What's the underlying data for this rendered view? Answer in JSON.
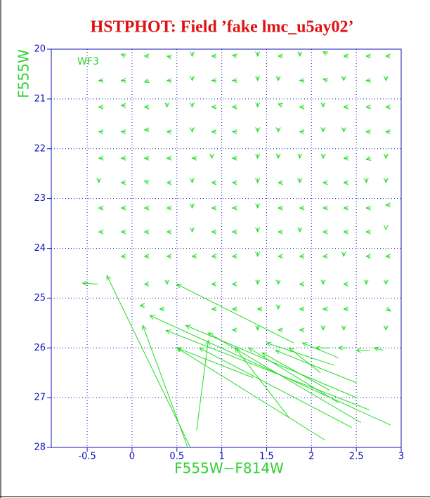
{
  "chart_data": {
    "type": "arrows",
    "title": "HSTPHOT: Field ’fake lmc_u5ay02’",
    "x_label": "F555W−F814W",
    "y_label": "F555W",
    "annotation": "WF3",
    "color": "#22dd22",
    "grid": true,
    "y_inverted": true,
    "xlim": [
      -0.9,
      3.0
    ],
    "ylim": [
      20,
      28
    ],
    "xticks": [
      -0.5,
      0,
      0.5,
      1,
      1.5,
      2,
      2.5,
      3
    ],
    "yticks": [
      20,
      21,
      22,
      23,
      24,
      25,
      26,
      27,
      28
    ],
    "arrows": [
      [
        -0.07,
        20.14,
        -0.12,
        20.1
      ],
      [
        0.19,
        20.14,
        0.14,
        20.14
      ],
      [
        0.44,
        20.16,
        0.39,
        20.14
      ],
      [
        0.67,
        20.06,
        0.67,
        20.14
      ],
      [
        0.94,
        20.14,
        0.89,
        20.14
      ],
      [
        1.17,
        20.14,
        1.12,
        20.12
      ],
      [
        1.4,
        20.06,
        1.4,
        20.14
      ],
      [
        1.68,
        20.14,
        1.63,
        20.14
      ],
      [
        1.87,
        20.06,
        1.87,
        20.14
      ],
      [
        2.18,
        20.1,
        2.13,
        20.05
      ],
      [
        2.41,
        20.14,
        2.36,
        20.14
      ],
      [
        2.66,
        20.14,
        2.61,
        20.14
      ],
      [
        2.88,
        20.14,
        2.83,
        20.14
      ],
      [
        -0.32,
        20.63,
        -0.37,
        20.63
      ],
      [
        -0.07,
        20.63,
        -0.12,
        20.63
      ],
      [
        0.19,
        20.63,
        0.14,
        20.66
      ],
      [
        0.44,
        20.63,
        0.39,
        20.63
      ],
      [
        0.67,
        20.55,
        0.67,
        20.63
      ],
      [
        0.94,
        20.63,
        0.89,
        20.63
      ],
      [
        1.17,
        20.63,
        1.12,
        20.63
      ],
      [
        1.4,
        20.55,
        1.4,
        20.63
      ],
      [
        1.63,
        20.55,
        1.63,
        20.63
      ],
      [
        1.92,
        20.63,
        1.87,
        20.63
      ],
      [
        2.18,
        20.63,
        2.13,
        20.6
      ],
      [
        2.36,
        20.55,
        2.36,
        20.63
      ],
      [
        2.66,
        20.63,
        2.61,
        20.63
      ],
      [
        2.83,
        20.55,
        2.83,
        20.63
      ],
      [
        -0.32,
        21.16,
        -0.37,
        21.16
      ],
      [
        -0.07,
        21.13,
        -0.12,
        21.13
      ],
      [
        0.19,
        21.16,
        0.14,
        21.16
      ],
      [
        0.39,
        21.08,
        0.39,
        21.16
      ],
      [
        0.67,
        21.08,
        0.67,
        21.16
      ],
      [
        0.94,
        21.16,
        0.89,
        21.16
      ],
      [
        1.17,
        21.16,
        1.12,
        21.16
      ],
      [
        1.4,
        21.08,
        1.4,
        21.16
      ],
      [
        1.68,
        21.13,
        1.63,
        21.1
      ],
      [
        1.92,
        21.16,
        1.87,
        21.16
      ],
      [
        2.13,
        21.08,
        2.13,
        21.16
      ],
      [
        2.41,
        21.16,
        2.36,
        21.16
      ],
      [
        2.66,
        21.16,
        2.61,
        21.16
      ],
      [
        2.88,
        21.16,
        2.83,
        21.16
      ],
      [
        -0.32,
        21.66,
        -0.37,
        21.66
      ],
      [
        -0.07,
        21.66,
        -0.12,
        21.66
      ],
      [
        0.19,
        21.62,
        0.14,
        21.62
      ],
      [
        0.44,
        21.66,
        0.39,
        21.66
      ],
      [
        0.67,
        21.58,
        0.67,
        21.66
      ],
      [
        0.94,
        21.66,
        0.89,
        21.66
      ],
      [
        1.17,
        21.66,
        1.12,
        21.66
      ],
      [
        1.4,
        21.58,
        1.4,
        21.66
      ],
      [
        1.63,
        21.58,
        1.63,
        21.66
      ],
      [
        1.92,
        21.66,
        1.87,
        21.66
      ],
      [
        2.13,
        21.58,
        2.13,
        21.66
      ],
      [
        2.36,
        21.58,
        2.36,
        21.66
      ],
      [
        2.66,
        21.66,
        2.61,
        21.66
      ],
      [
        2.88,
        21.66,
        2.83,
        21.66
      ],
      [
        -0.32,
        22.19,
        -0.37,
        22.19
      ],
      [
        -0.07,
        22.19,
        -0.12,
        22.19
      ],
      [
        0.19,
        22.19,
        0.14,
        22.19
      ],
      [
        0.44,
        22.19,
        0.39,
        22.19
      ],
      [
        0.72,
        22.19,
        0.67,
        22.19
      ],
      [
        0.89,
        22.11,
        0.89,
        22.19
      ],
      [
        1.17,
        22.19,
        1.12,
        22.19
      ],
      [
        1.4,
        22.11,
        1.4,
        22.19
      ],
      [
        1.63,
        22.11,
        1.63,
        22.19
      ],
      [
        1.87,
        22.11,
        1.87,
        22.19
      ],
      [
        2.13,
        22.11,
        2.13,
        22.19
      ],
      [
        2.41,
        22.19,
        2.36,
        22.19
      ],
      [
        2.66,
        22.19,
        2.61,
        22.22
      ],
      [
        2.83,
        22.11,
        2.83,
        22.19
      ],
      [
        -0.37,
        22.6,
        -0.37,
        22.68
      ],
      [
        -0.07,
        22.68,
        -0.12,
        22.68
      ],
      [
        0.19,
        22.68,
        0.14,
        22.65
      ],
      [
        0.44,
        22.68,
        0.39,
        22.68
      ],
      [
        0.67,
        22.6,
        0.67,
        22.68
      ],
      [
        0.94,
        22.68,
        0.89,
        22.68
      ],
      [
        1.17,
        22.68,
        1.12,
        22.68
      ],
      [
        1.4,
        22.6,
        1.4,
        22.68
      ],
      [
        1.68,
        22.68,
        1.63,
        22.68
      ],
      [
        1.87,
        22.6,
        1.87,
        22.68
      ],
      [
        2.18,
        22.68,
        2.13,
        22.68
      ],
      [
        2.41,
        22.68,
        2.36,
        22.68
      ],
      [
        2.61,
        22.6,
        2.61,
        22.68
      ],
      [
        2.83,
        22.6,
        2.83,
        22.68
      ],
      [
        -0.32,
        23.19,
        -0.37,
        23.19
      ],
      [
        -0.07,
        23.19,
        -0.12,
        23.19
      ],
      [
        0.19,
        23.19,
        0.14,
        23.19
      ],
      [
        0.44,
        23.19,
        0.39,
        23.19
      ],
      [
        0.67,
        23.11,
        0.67,
        23.19
      ],
      [
        0.94,
        23.19,
        0.89,
        23.19
      ],
      [
        1.17,
        23.19,
        1.12,
        23.19
      ],
      [
        1.4,
        23.11,
        1.4,
        23.19
      ],
      [
        1.68,
        23.19,
        1.63,
        23.19
      ],
      [
        1.92,
        23.19,
        1.87,
        23.19
      ],
      [
        2.18,
        23.19,
        2.13,
        23.19
      ],
      [
        2.41,
        23.19,
        2.36,
        23.19
      ],
      [
        2.66,
        23.19,
        2.61,
        23.19
      ],
      [
        2.88,
        23.13,
        2.83,
        23.13
      ],
      [
        -0.32,
        23.67,
        -0.37,
        23.67
      ],
      [
        -0.07,
        23.67,
        -0.12,
        23.67
      ],
      [
        0.19,
        23.67,
        0.14,
        23.67
      ],
      [
        0.44,
        23.67,
        0.39,
        23.67
      ],
      [
        0.67,
        23.59,
        0.67,
        23.67
      ],
      [
        0.94,
        23.67,
        0.89,
        23.67
      ],
      [
        1.17,
        23.67,
        1.12,
        23.67
      ],
      [
        1.4,
        23.59,
        1.4,
        23.67
      ],
      [
        1.68,
        23.67,
        1.63,
        23.67
      ],
      [
        1.87,
        23.59,
        1.87,
        23.67
      ],
      [
        2.18,
        23.67,
        2.13,
        23.67
      ],
      [
        2.41,
        23.67,
        2.36,
        23.67
      ],
      [
        2.66,
        23.67,
        2.61,
        23.67
      ],
      [
        2.83,
        23.59,
        2.83,
        23.62
      ],
      [
        -0.07,
        24.16,
        -0.12,
        24.16
      ],
      [
        0.19,
        24.16,
        0.14,
        24.16
      ],
      [
        0.44,
        24.16,
        0.39,
        24.16
      ],
      [
        0.72,
        24.16,
        0.67,
        24.16
      ],
      [
        0.94,
        24.16,
        0.89,
        24.16
      ],
      [
        1.17,
        24.16,
        1.12,
        24.16
      ],
      [
        1.4,
        24.08,
        1.4,
        24.16
      ],
      [
        1.68,
        24.16,
        1.63,
        24.16
      ],
      [
        1.92,
        24.16,
        1.87,
        24.16
      ],
      [
        2.18,
        24.16,
        2.13,
        24.16
      ],
      [
        2.36,
        24.08,
        2.36,
        24.16
      ],
      [
        2.66,
        24.16,
        2.61,
        24.16
      ],
      [
        2.88,
        24.16,
        2.83,
        24.16
      ],
      [
        0.19,
        24.72,
        0.14,
        24.72
      ],
      [
        0.39,
        24.64,
        0.39,
        24.72
      ],
      [
        0.94,
        24.72,
        0.89,
        24.72
      ],
      [
        1.17,
        24.72,
        1.12,
        24.72
      ],
      [
        1.4,
        24.64,
        1.4,
        24.72
      ],
      [
        1.63,
        24.64,
        1.63,
        24.72
      ],
      [
        1.92,
        24.72,
        1.87,
        24.72
      ],
      [
        2.13,
        24.64,
        2.13,
        24.72
      ],
      [
        2.41,
        24.72,
        2.36,
        24.72
      ],
      [
        2.61,
        24.64,
        2.61,
        24.72
      ],
      [
        2.83,
        24.64,
        2.83,
        24.72
      ],
      [
        0.14,
        25.15,
        0.09,
        25.15
      ],
      [
        0.36,
        25.22,
        0.31,
        25.22
      ],
      [
        0.94,
        25.22,
        0.89,
        25.22
      ],
      [
        1.17,
        25.22,
        1.12,
        25.22
      ],
      [
        1.45,
        25.22,
        1.4,
        25.22
      ],
      [
        1.63,
        25.14,
        1.63,
        25.22
      ],
      [
        1.92,
        25.22,
        1.87,
        25.22
      ],
      [
        2.18,
        25.22,
        2.13,
        25.22
      ],
      [
        2.41,
        25.22,
        2.36,
        25.22
      ],
      [
        2.83,
        25.2,
        2.88,
        25.26
      ],
      [
        1.17,
        25.64,
        1.12,
        25.64
      ],
      [
        1.4,
        25.56,
        1.4,
        25.64
      ],
      [
        1.68,
        25.64,
        1.63,
        25.64
      ],
      [
        1.92,
        25.64,
        1.87,
        25.64
      ],
      [
        2.13,
        25.56,
        2.13,
        25.64
      ],
      [
        2.36,
        25.56,
        2.36,
        25.64
      ],
      [
        2.83,
        25.56,
        2.83,
        25.64
      ],
      [
        -0.38,
        24.72,
        -0.55,
        24.7
      ],
      [
        0.65,
        28.0,
        -0.28,
        24.55
      ],
      [
        0.62,
        28.0,
        0.12,
        25.55
      ],
      [
        1.8,
        25.9,
        0.5,
        24.72
      ],
      [
        2.88,
        27.55,
        0.2,
        25.35
      ],
      [
        2.65,
        27.25,
        0.38,
        25.65
      ],
      [
        2.5,
        27.0,
        0.6,
        25.55
      ],
      [
        2.55,
        27.5,
        0.85,
        25.7
      ],
      [
        2.15,
        27.85,
        0.5,
        26.0
      ],
      [
        1.35,
        26.6,
        0.5,
        26.0
      ],
      [
        2.45,
        27.6,
        0.75,
        26.0
      ],
      [
        0.72,
        27.65,
        0.85,
        25.85
      ],
      [
        1.75,
        27.4,
        1.15,
        26.0
      ],
      [
        2.3,
        27.1,
        1.3,
        26.0
      ],
      [
        2.2,
        26.85,
        1.45,
        26.1
      ],
      [
        2.5,
        26.7,
        1.6,
        26.05
      ],
      [
        2.1,
        26.5,
        1.75,
        26.0
      ],
      [
        2.3,
        26.2,
        1.9,
        25.9
      ],
      [
        2.25,
        26.35,
        1.5,
        25.9
      ],
      [
        2.2,
        26.0,
        2.05,
        26.0
      ],
      [
        2.4,
        26.0,
        2.3,
        26.0
      ],
      [
        2.65,
        26.05,
        2.5,
        26.05
      ],
      [
        2.8,
        26.05,
        2.7,
        26.0
      ]
    ]
  }
}
